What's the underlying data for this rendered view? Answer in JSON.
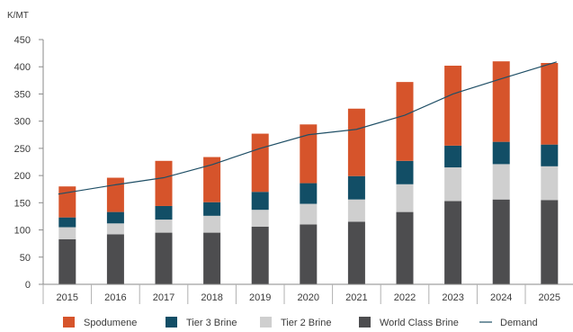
{
  "chart_data": {
    "type": "bar",
    "stacked": true,
    "unit_label": "K/MT",
    "title": "",
    "xlabel": "",
    "ylabel": "",
    "categories": [
      "2015",
      "2016",
      "2017",
      "2018",
      "2019",
      "2020",
      "2021",
      "2022",
      "2023",
      "2024",
      "2025"
    ],
    "y_ticks": [
      0,
      50,
      100,
      150,
      200,
      250,
      300,
      350,
      400,
      450
    ],
    "ylim": [
      0,
      450
    ],
    "grid": false,
    "legend_position": "bottom",
    "series": [
      {
        "name": "World Class Brine",
        "kind": "bar",
        "color": "#4d4d4f",
        "values": [
          83,
          92,
          95,
          95,
          106,
          110,
          115,
          133,
          153,
          156,
          155
        ]
      },
      {
        "name": "Tier 2 Brine",
        "kind": "bar",
        "color": "#cfcfcf",
        "values": [
          22,
          20,
          24,
          31,
          31,
          38,
          41,
          51,
          62,
          65,
          62
        ]
      },
      {
        "name": "Tier 3 Brine",
        "kind": "bar",
        "color": "#124e66",
        "values": [
          18,
          21,
          25,
          25,
          33,
          38,
          43,
          43,
          40,
          41,
          40
        ]
      },
      {
        "name": "Spodumene",
        "kind": "bar",
        "color": "#d6542b",
        "values": [
          57,
          63,
          83,
          83,
          107,
          108,
          124,
          145,
          147,
          148,
          150
        ]
      },
      {
        "name": "Demand",
        "kind": "line",
        "color": "#1f4f66",
        "values": [
          166,
          183,
          196,
          220,
          250,
          275,
          285,
          311,
          350,
          378,
          409
        ]
      }
    ],
    "legend_order": [
      "Spodumene",
      "Tier 3 Brine",
      "Tier 2 Brine",
      "World Class Brine",
      "Demand"
    ]
  }
}
